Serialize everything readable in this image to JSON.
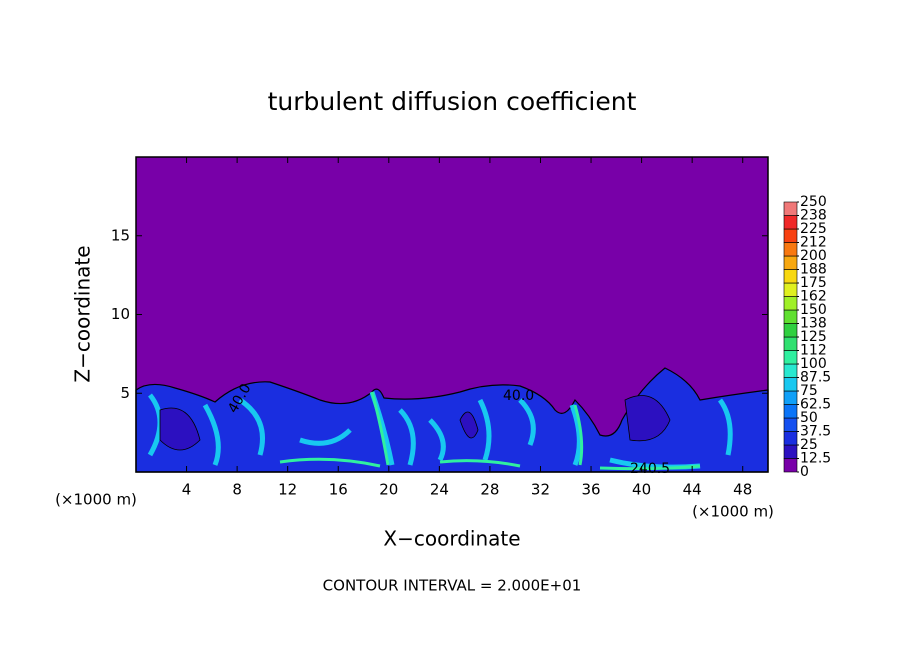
{
  "chart_data": {
    "type": "contour",
    "title": "turbulent diffusion coefficient",
    "x_label": "X−coordinate",
    "y_label": "Z−coordinate",
    "x_unit": "(×1000 m)",
    "x_unit_right": "(×1000 m)",
    "footer": "CONTOUR INTERVAL = 2.000E+01",
    "contour_labels": [
      "40.0",
      "40.0",
      "240.5"
    ],
    "xlim": [
      0,
      50
    ],
    "xticks": [
      4,
      8,
      12,
      16,
      20,
      24,
      28,
      32,
      36,
      40,
      44,
      48
    ],
    "ylim": [
      0,
      20
    ],
    "yticks": [
      5,
      10,
      15
    ],
    "colorbar": {
      "ticks": [
        0,
        12.5,
        25,
        37.5,
        50,
        62.5,
        75,
        87.5,
        100,
        {
          "value": 112.5,
          "label": "112"
        },
        125,
        {
          "value": 137.5,
          "label": "138"
        },
        150,
        {
          "value": 162.5,
          "label": "162"
        },
        175,
        {
          "value": 187.5,
          "label": "188"
        },
        200,
        {
          "value": 212.5,
          "label": "212"
        },
        225,
        {
          "value": 237.5,
          "label": "238"
        },
        250
      ],
      "colors": [
        "#7800a8",
        "#2c10c0",
        "#1a2ee0",
        "#1450f0",
        "#0a74f8",
        "#10a0f8",
        "#18c8f0",
        "#28e8d0",
        "#30f0a0",
        "#30e070",
        "#30d040",
        "#60e030",
        "#a0f028",
        "#e0f020",
        "#f8d810",
        "#f8a810",
        "#f87810",
        "#f84010",
        "#f02828",
        "#f07878"
      ]
    }
  }
}
